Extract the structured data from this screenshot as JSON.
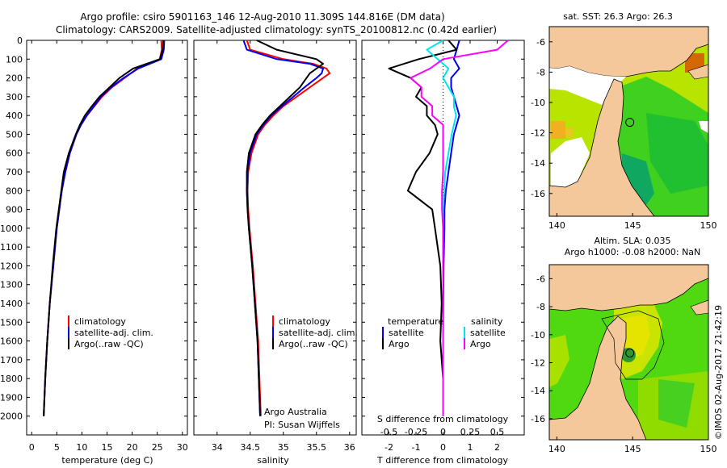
{
  "title": {
    "line1": "Argo profile: csiro 5901163_146 12-Aug-2010 11.309S 144.816E (DM data)",
    "line2": "Climatology: CARS2009. Satellite-adjusted climatology: synTS_20100812.nc (0.42d earlier)"
  },
  "watermark": "©IMOS 02-Aug-2017 21:42:19",
  "colors": {
    "red": "#ff0000",
    "blue": "#0000ee",
    "black": "#000000",
    "cyan": "#00e5ee",
    "magenta": "#ff00ff",
    "land": "#f4c89a",
    "green": "#00d000",
    "darkgreen": "#009060",
    "yellowgreen": "#b8e600",
    "orange": "#d86800"
  },
  "chart_data": [
    {
      "type": "line",
      "id": "temperature",
      "xlabel": "temperature (deg C)",
      "ylabel": "",
      "xlim": [
        -1,
        31
      ],
      "ylim": [
        0,
        2100
      ],
      "xticks": [
        "0",
        "5",
        "10",
        "15",
        "20",
        "25",
        "30"
      ],
      "yticks": [
        "0",
        "100",
        "200",
        "300",
        "400",
        "500",
        "600",
        "700",
        "800",
        "900",
        "1000",
        "1100",
        "1200",
        "1300",
        "1400",
        "1500",
        "1600",
        "1700",
        "1800",
        "1900",
        "2000"
      ],
      "depth": [
        0,
        50,
        100,
        150,
        200,
        250,
        300,
        350,
        400,
        450,
        500,
        600,
        700,
        800,
        900,
        1000,
        1200,
        1400,
        1600,
        1800,
        2000
      ],
      "series": [
        {
          "name": "climatology",
          "color": "red",
          "values": [
            25.8,
            25.9,
            25.5,
            21,
            18.5,
            16,
            14,
            12.5,
            11,
            9.8,
            8.9,
            7.6,
            6.7,
            6.0,
            5.5,
            5.0,
            4.3,
            3.6,
            3.1,
            2.7,
            2.4
          ]
        },
        {
          "name": "satellite-adj. clim.",
          "color": "blue",
          "values": [
            26.4,
            26.3,
            25.8,
            21.2,
            18.3,
            15.8,
            13.8,
            12.4,
            11.0,
            9.8,
            8.9,
            7.6,
            6.7,
            6.0,
            5.5,
            5.0,
            4.3,
            3.6,
            3.1,
            2.7,
            2.4
          ]
        },
        {
          "name": "Argo(..raw -QC)",
          "color": "black",
          "values": [
            26.2,
            26.1,
            25.5,
            20.2,
            17.5,
            15.5,
            13.5,
            12.0,
            10.6,
            9.6,
            8.8,
            7.4,
            6.4,
            5.9,
            5.4,
            4.9,
            4.2,
            3.6,
            3.1,
            2.7,
            2.4
          ]
        }
      ],
      "legend": [
        "climatology",
        "satellite-adj. clim.",
        "Argo(..raw -QC)"
      ]
    },
    {
      "type": "line",
      "id": "salinity",
      "xlabel": "salinity",
      "xlim": [
        33.65,
        36.1
      ],
      "ylim": [
        0,
        2100
      ],
      "xticks": [
        "34",
        "34.5",
        "35",
        "35.5",
        "36"
      ],
      "depth": [
        0,
        50,
        100,
        125,
        150,
        175,
        200,
        250,
        300,
        350,
        400,
        450,
        500,
        600,
        700,
        800,
        900,
        1000,
        1200,
        1400,
        1600,
        1800,
        2000
      ],
      "series": [
        {
          "name": "climatology",
          "color": "red",
          "values": [
            34.45,
            34.5,
            35.0,
            35.45,
            35.65,
            35.7,
            35.6,
            35.4,
            35.2,
            35.0,
            34.85,
            34.72,
            34.62,
            34.52,
            34.47,
            34.46,
            34.47,
            34.49,
            34.54,
            34.58,
            34.62,
            34.64,
            34.66
          ]
        },
        {
          "name": "satellite-adj. clim.",
          "color": "blue",
          "values": [
            34.4,
            34.45,
            34.9,
            35.4,
            35.6,
            35.58,
            35.5,
            35.32,
            35.15,
            34.98,
            34.82,
            34.7,
            34.6,
            34.5,
            34.46,
            34.45,
            34.46,
            34.48,
            34.53,
            34.57,
            34.61,
            34.63,
            34.65
          ]
        },
        {
          "name": "Argo(..raw -QC)",
          "color": "black",
          "values": [
            34.6,
            34.9,
            35.5,
            35.6,
            35.5,
            35.4,
            35.35,
            35.25,
            35.1,
            34.95,
            34.8,
            34.68,
            34.58,
            34.48,
            34.45,
            34.45,
            34.46,
            34.48,
            34.53,
            34.57,
            34.61,
            34.63,
            34.65
          ]
        }
      ],
      "legend": [
        "climatology",
        "satellite-adj. clim.",
        "Argo(..raw -QC)"
      ],
      "annotation": [
        "Argo Australia",
        "PI: Susan Wijffels"
      ]
    },
    {
      "type": "line",
      "id": "difference",
      "xlabel": "T difference from climatology",
      "xlabel_top": "S difference from climatology",
      "xlim": [
        -3,
        3
      ],
      "ylim": [
        0,
        2100
      ],
      "xticks": [
        "-2",
        "-1",
        "0",
        "1",
        "2"
      ],
      "xticks_top": [
        "-0.5",
        "-0.25",
        "0",
        "0.25",
        "0.5"
      ],
      "depth": [
        0,
        50,
        100,
        150,
        200,
        250,
        300,
        350,
        400,
        450,
        500,
        600,
        700,
        800,
        900,
        1000,
        1200,
        1400,
        1600,
        1800,
        2000
      ],
      "series": [
        {
          "name": "temperature satellite",
          "color": "blue",
          "values": [
            0.6,
            0.5,
            0.4,
            0.6,
            0.3,
            0.3,
            0.4,
            0.5,
            0.6,
            0.5,
            0.4,
            0.3,
            0.2,
            0.1,
            0.05,
            0.05,
            0.02,
            0.01,
            0.0,
            0.0,
            0.0
          ]
        },
        {
          "name": "temperature Argo",
          "color": "black",
          "values": [
            0.2,
            0.5,
            -0.9,
            -2.0,
            -1.2,
            -0.8,
            -1.0,
            -0.6,
            -0.6,
            -0.3,
            -0.2,
            -0.5,
            -1.0,
            -1.3,
            -0.4,
            -0.3,
            -0.1,
            -0.05,
            -0.1,
            0.0,
            0.0
          ]
        },
        {
          "name": "salinity satellite",
          "color": "cyan",
          "values": [
            0.0,
            -0.15,
            -0.05,
            0.05,
            0.0,
            0.05,
            0.1,
            0.1,
            0.12,
            0.1,
            0.08,
            0.05,
            0.02,
            0.01,
            0.0,
            0.0,
            0.0,
            0.0,
            0.0,
            0.0,
            0.0
          ]
        },
        {
          "name": "salinity Argo",
          "color": "magenta",
          "values": [
            0.6,
            0.5,
            0.0,
            -0.12,
            -0.3,
            -0.2,
            -0.2,
            -0.1,
            -0.1,
            0.0,
            0.0,
            0.0,
            0.0,
            -0.01,
            -0.01,
            0.0,
            0.0,
            0.0,
            0.0,
            0.0,
            0.0
          ]
        }
      ],
      "legend": {
        "temperature_title": "temperature",
        "salinity_title": "salinity",
        "temperature": [
          "satellite",
          "Argo"
        ],
        "salinity": [
          "satellite",
          "Argo"
        ]
      }
    },
    {
      "type": "heatmap",
      "id": "sst_map",
      "title": "sat. SST: 26.3  Argo: 26.3",
      "xlim": [
        139.5,
        150
      ],
      "ylim": [
        -17.5,
        -5
      ],
      "xticks": [
        "140",
        "145",
        "150"
      ],
      "yticks": [
        "-6",
        "-8",
        "-10",
        "-12",
        "-14",
        "-16"
      ],
      "marker": {
        "lon": 144.816,
        "lat": -11.309
      }
    },
    {
      "type": "heatmap",
      "id": "sla_map",
      "title_line1": "Altim. SLA: 0.035",
      "title_line2": "Argo h1000: -0.08 h2000: NaN",
      "xlim": [
        139.5,
        150
      ],
      "ylim": [
        -17.5,
        -5
      ],
      "xticks": [
        "140",
        "145",
        "150"
      ],
      "yticks": [
        "-6",
        "-8",
        "-10",
        "-12",
        "-14",
        "-16"
      ],
      "marker": {
        "lon": 144.816,
        "lat": -11.309
      }
    }
  ]
}
